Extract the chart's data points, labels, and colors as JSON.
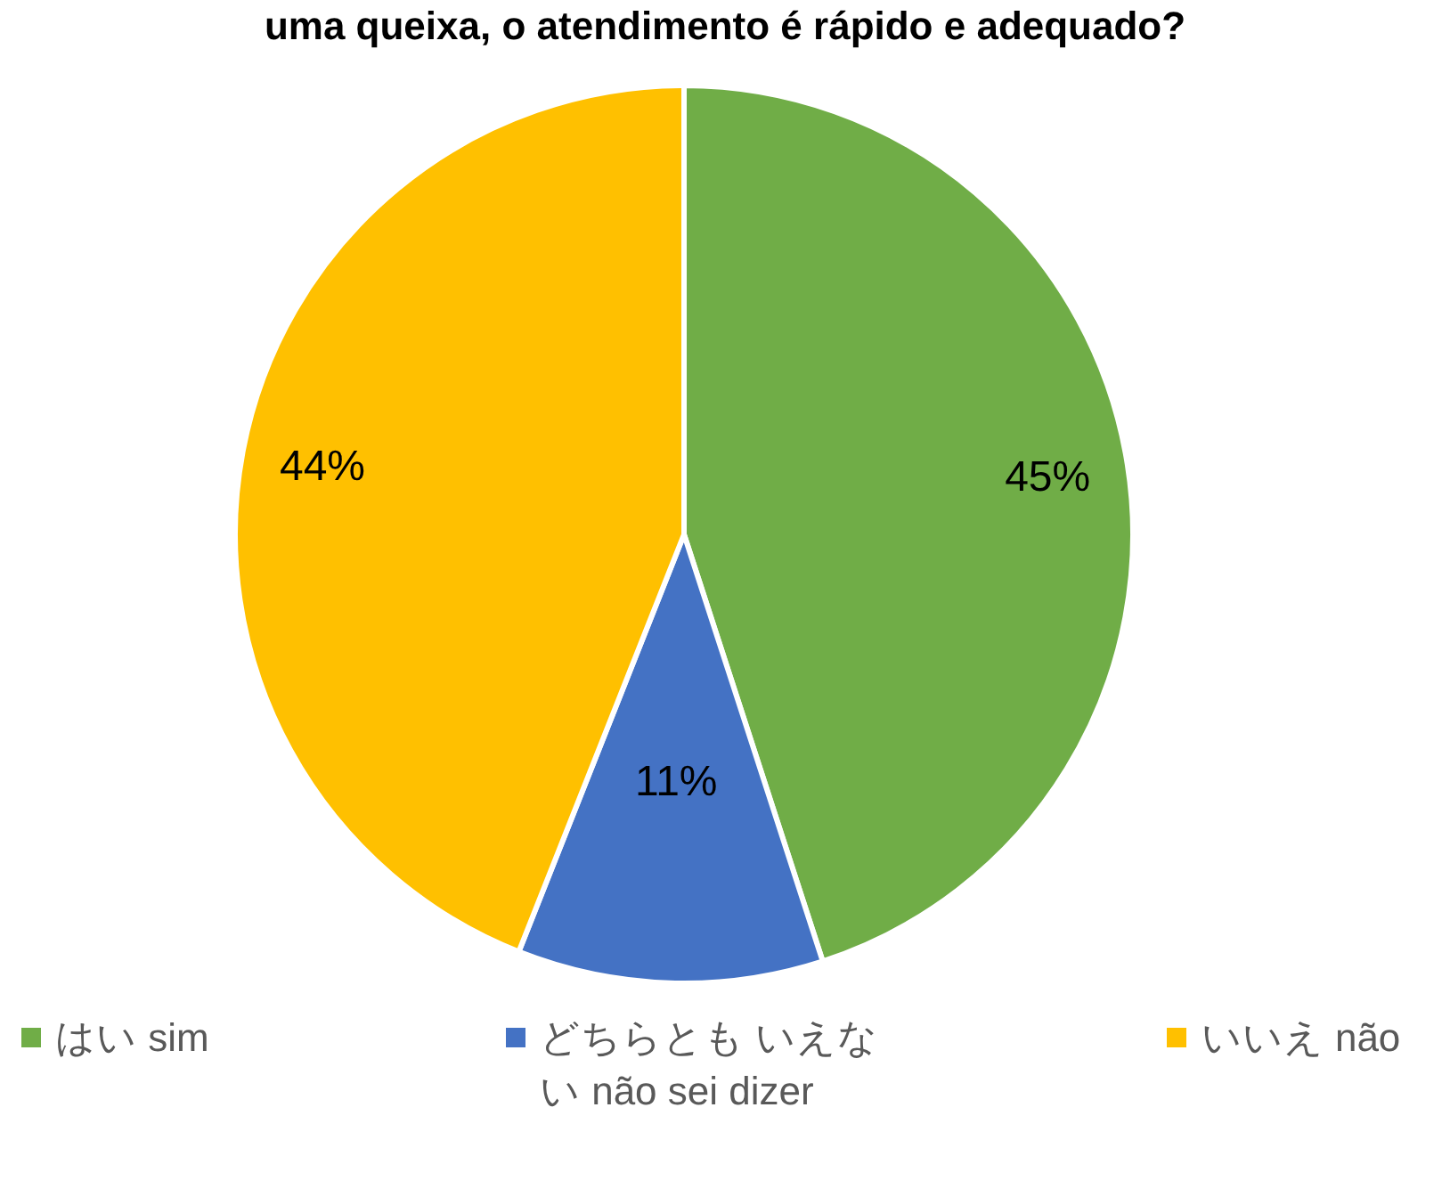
{
  "chart_data": {
    "type": "pie",
    "title": "uma queixa, o atendimento é rápido e adequado?",
    "categories": [
      "はい sim",
      "どちらとも いえない não sei dizer",
      "いいえ não"
    ],
    "values": [
      45,
      11,
      44
    ],
    "colors": [
      "#70ad47",
      "#4472c4",
      "#ffc000"
    ],
    "value_labels": [
      "45%",
      "11%",
      "44%"
    ],
    "legend": "bottom"
  }
}
